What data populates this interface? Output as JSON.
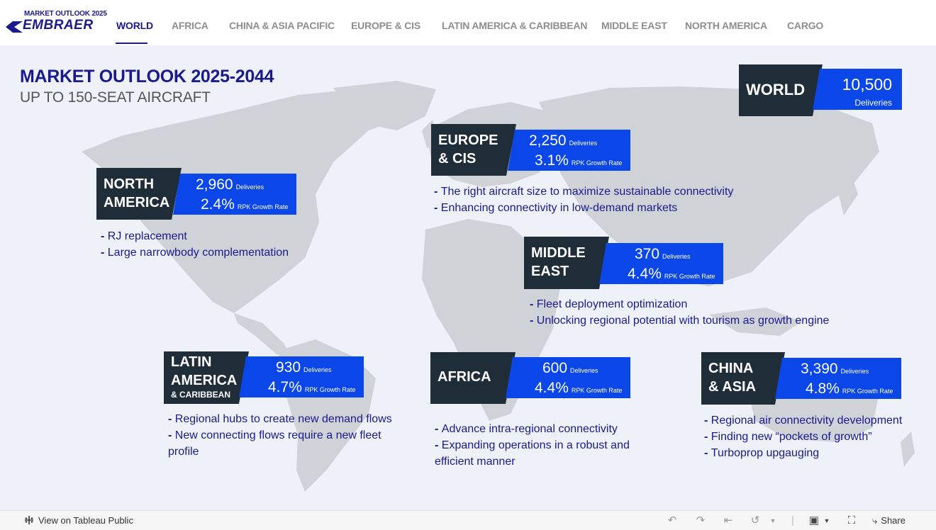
{
  "logo": {
    "small": "MARKET OUTLOOK 2025",
    "word": "EMBRAER"
  },
  "tabs": [
    {
      "label": "WORLD",
      "active": true
    },
    {
      "label": "AFRICA"
    },
    {
      "label": "CHINA & ASIA PACIFIC"
    },
    {
      "label": "EUROPE & CIS"
    },
    {
      "label": "LATIN AMERICA & CARIBBEAN"
    },
    {
      "label": "MIDDLE EAST"
    },
    {
      "label": "NORTH AMERICA"
    },
    {
      "label": "CARGO"
    }
  ],
  "header": {
    "title": "MARKET OUTLOOK 2025-2044",
    "subtitle": "UP TO 150-SEAT AIRCRAFT"
  },
  "world": {
    "name": "WORLD",
    "deliveries": "10,500",
    "deliveries_label": "Deliveries"
  },
  "labels": {
    "deliveries": "Deliveries",
    "rpk": "RPK Growth Rate"
  },
  "regions": {
    "europe": {
      "name1": "EUROPE",
      "name2": "& CIS",
      "deliveries": "2,250",
      "growth": "3.1%",
      "bullets": [
        "The right aircraft size to maximize sustainable connectivity",
        "Enhancing connectivity in low-demand markets"
      ]
    },
    "north_america": {
      "name1": "NORTH",
      "name2": "AMERICA",
      "deliveries": "2,960",
      "growth": "2.4%",
      "bullets": [
        "RJ replacement",
        "Large narrowbody complementation"
      ]
    },
    "middle_east": {
      "name1": "MIDDLE",
      "name2": "EAST",
      "deliveries": "370",
      "growth": "4.4%",
      "bullets": [
        "Fleet deployment optimization",
        "Unlocking regional potential with tourism as growth engine"
      ]
    },
    "latin_america": {
      "name1": "LATIN",
      "name2": "AMERICA",
      "name3": "& CARIBBEAN",
      "deliveries": "930",
      "growth": "4.7%",
      "bullets": [
        "Regional hubs to create new demand flows",
        "New connecting flows require a new fleet profile"
      ]
    },
    "africa": {
      "name1": "AFRICA",
      "deliveries": "600",
      "growth": "4.4%",
      "bullets": [
        "Advance intra-regional connectivity",
        "Expanding operations in a robust and efficient manner"
      ]
    },
    "china": {
      "name1": "CHINA",
      "name2": "& ASIA",
      "deliveries": "3,390",
      "growth": "4.8%",
      "bullets": [
        "Regional air connectivity development",
        "Finding new “pockets of growth”",
        "Turboprop upgauging"
      ]
    }
  },
  "footer": {
    "view_label": "View on Tableau Public",
    "share_label": "Share"
  },
  "colors": {
    "navy": "#1a1a8c",
    "dark_panel": "#1f2d38",
    "blue_panel": "#0a46e8",
    "map_land": "#cfd2d7",
    "background": "#eef2f8"
  }
}
